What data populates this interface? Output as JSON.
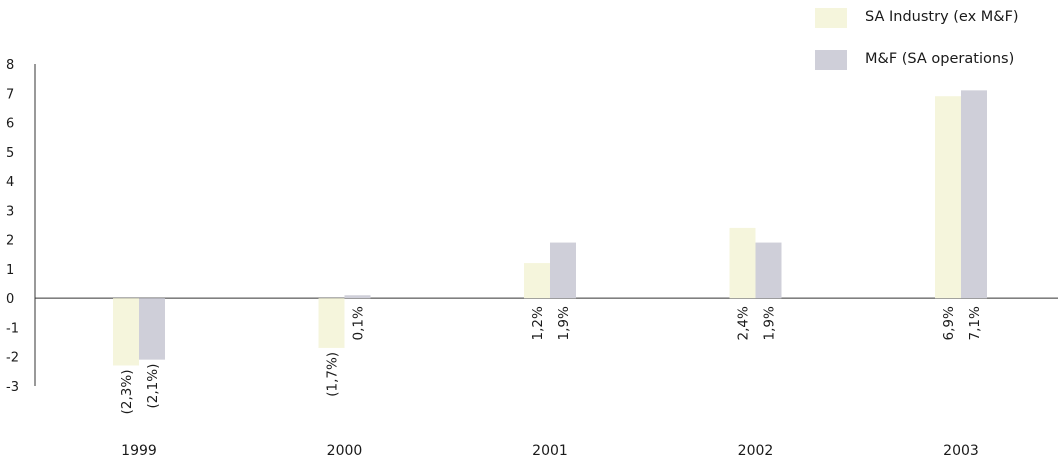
{
  "chart_data": {
    "type": "bar",
    "categories": [
      "1999",
      "2000",
      "2001",
      "2002",
      "2003"
    ],
    "series": [
      {
        "name": "SA Industry (ex M&F)",
        "color": "#f5f5dc",
        "values": [
          -2.3,
          -1.7,
          1.2,
          2.4,
          6.9
        ],
        "labels": [
          "(2,3%)",
          "(1,7%)",
          "1,2%",
          "2,4%",
          "6,9%"
        ]
      },
      {
        "name": "M&F (SA operations)",
        "color": "#cfcfd9",
        "values": [
          -2.1,
          0.1,
          1.9,
          1.9,
          7.1
        ],
        "labels": [
          "(2,1%)",
          "0,1%",
          "1,9%",
          "1,9%",
          "7,1%"
        ]
      }
    ],
    "yticks": [
      "8",
      "7",
      "6",
      "5",
      "4",
      "3",
      "2",
      "1",
      "0",
      "-1",
      "-2",
      "-3"
    ],
    "ylim": [
      -3,
      8
    ],
    "legend_position": "top-right",
    "grid": false
  }
}
